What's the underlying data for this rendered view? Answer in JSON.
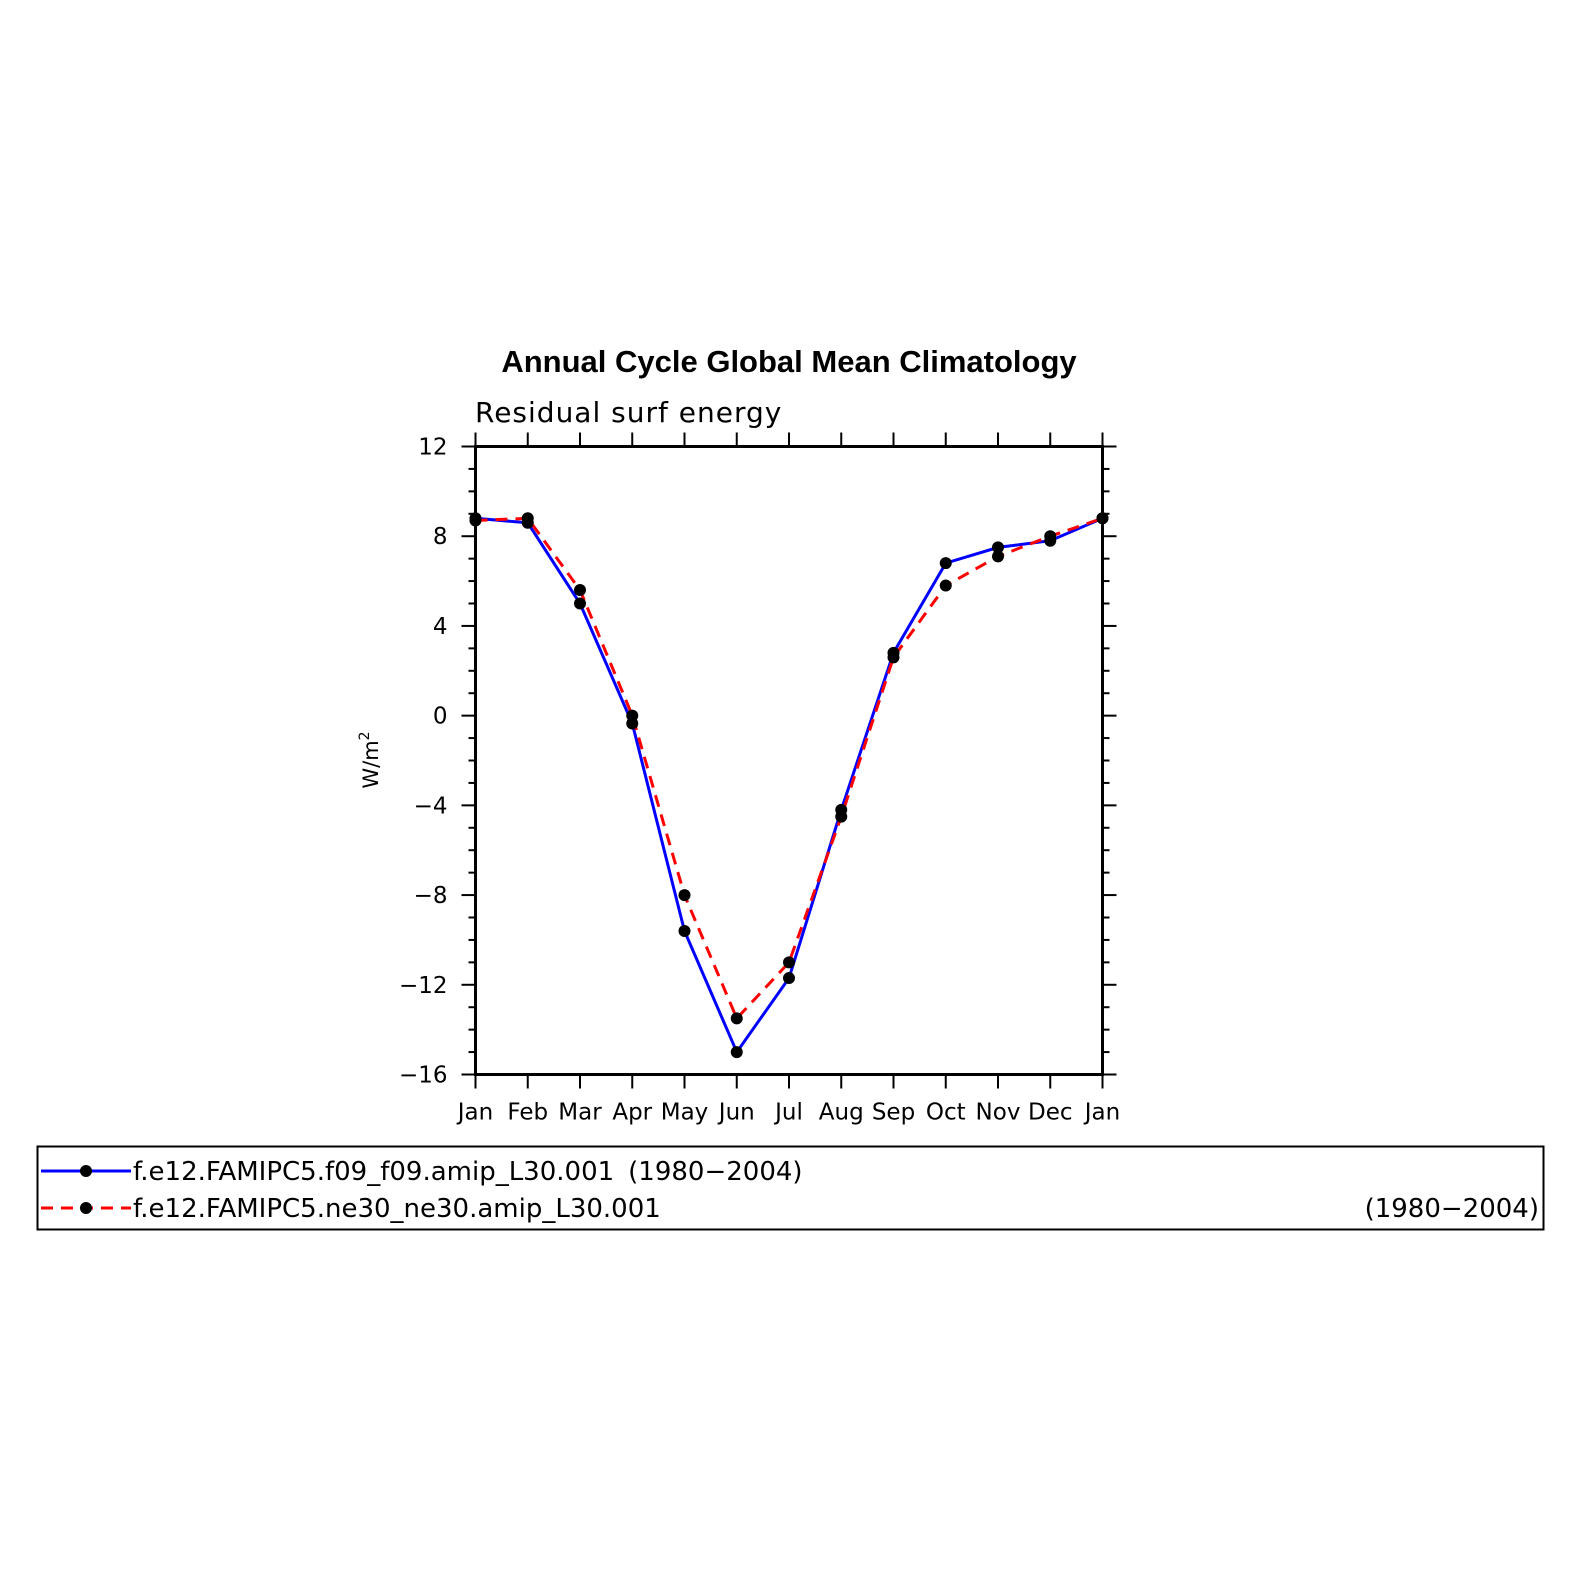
{
  "chart_data": {
    "type": "line",
    "title": "Annual Cycle Global Mean Climatology",
    "subtitle": "Residual surf energy",
    "ylabel": "W/m",
    "ylabel_superscript": "2",
    "categories": [
      "Jan",
      "Feb",
      "Mar",
      "Apr",
      "May",
      "Jun",
      "Jul",
      "Aug",
      "Sep",
      "Oct",
      "Nov",
      "Dec",
      "Jan"
    ],
    "ylim": [
      -16,
      12
    ],
    "yticks": [
      12,
      8,
      4,
      0,
      -4,
      -8,
      -12,
      -16
    ],
    "ytick_labels": [
      "12",
      "8",
      "4",
      "0",
      "−4",
      "−8",
      "−12",
      "−16"
    ],
    "legend_placement": "bottom",
    "series": [
      {
        "name": "f.e12.FAMIPC5.f09_f09.amip_L30.001",
        "years": "(1980−2004)",
        "color": "#0000ff",
        "dash": "solid",
        "values": [
          8.8,
          8.6,
          5.0,
          -0.35,
          -9.6,
          -15.0,
          -11.7,
          -4.2,
          2.8,
          6.8,
          7.5,
          7.8,
          8.8
        ]
      },
      {
        "name": "f.e12.FAMIPC5.ne30_ne30.amip_L30.001",
        "years": "(1980−2004)",
        "color": "#ff0000",
        "dash": "dashed",
        "values": [
          8.7,
          8.8,
          5.6,
          0.0,
          -8.0,
          -13.5,
          -11.0,
          -4.5,
          2.6,
          5.8,
          7.1,
          8.0,
          8.8
        ]
      }
    ]
  }
}
